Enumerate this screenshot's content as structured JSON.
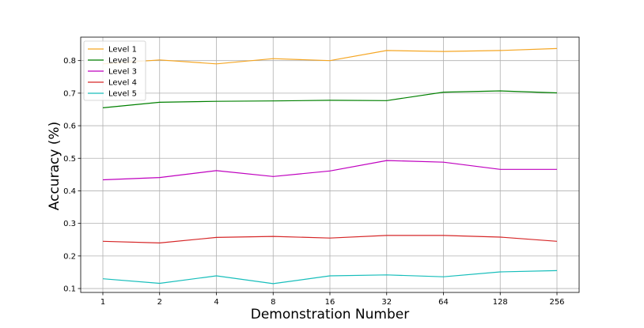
{
  "chart_data": {
    "type": "line",
    "title": "",
    "xlabel": "Demonstration Number",
    "ylabel": "Accuracy (%)",
    "categories": [
      "1",
      "2",
      "4",
      "8",
      "16",
      "32",
      "64",
      "128",
      "256"
    ],
    "yticks": [
      "0.1",
      "0.2",
      "0.3",
      "0.4",
      "0.5",
      "0.6",
      "0.7",
      "0.8"
    ],
    "ylim": [
      0.088,
      0.872
    ],
    "grid": true,
    "legend_position": "top-left",
    "series": [
      {
        "name": "Level 1",
        "color": "#f5a623",
        "values": [
          0.79,
          0.802,
          0.79,
          0.806,
          0.8,
          0.831,
          0.828,
          0.831,
          0.837
        ]
      },
      {
        "name": "Level 2",
        "color": "#008000",
        "values": [
          0.655,
          0.672,
          0.675,
          0.676,
          0.678,
          0.677,
          0.703,
          0.707,
          0.701
        ]
      },
      {
        "name": "Level 3",
        "color": "#bf00bf",
        "values": [
          0.434,
          0.441,
          0.462,
          0.444,
          0.461,
          0.493,
          0.488,
          0.466,
          0.466
        ]
      },
      {
        "name": "Level 4",
        "color": "#d62728",
        "values": [
          0.245,
          0.24,
          0.257,
          0.26,
          0.255,
          0.263,
          0.263,
          0.258,
          0.245
        ]
      },
      {
        "name": "Level 5",
        "color": "#17bebb",
        "values": [
          0.13,
          0.116,
          0.139,
          0.115,
          0.139,
          0.142,
          0.136,
          0.151,
          0.155
        ]
      }
    ]
  }
}
